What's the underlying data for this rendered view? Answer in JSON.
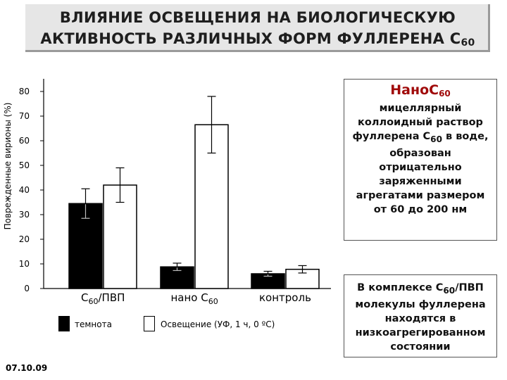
{
  "header": {
    "title_line1": "ВЛИЯНИЕ ОСВЕЩЕНИЯ НА БИОЛОГИЧЕСКУЮ",
    "title_line2": "АКТИВНОСТЬ РАЗЛИЧНЫХ ФОРМ ФУЛЛЕРЕНА С",
    "title_sub": "60"
  },
  "info_box1": {
    "title": "Нано",
    "title_c": "С",
    "title_sub": "60",
    "text_a": "мицеллярный коллоидный раствор фуллерена С",
    "text_sub": "60",
    "text_b": " в воде, образован отрицательно заряженными агрегатами размером от 60 до 200 нм"
  },
  "info_box2": {
    "text_a": "В комплексе С",
    "text_sub": "60",
    "text_b": "/ПВП молекулы фуллерена находятся в низкоагрегированном состоянии"
  },
  "footer": {
    "date": "07.10.09"
  },
  "chart_data": {
    "type": "bar",
    "ylabel": "Поврежденные вирионы (%)",
    "ylim": [
      0,
      80
    ],
    "yticks": [
      0,
      10,
      20,
      30,
      40,
      50,
      60,
      70,
      80
    ],
    "categories": [
      {
        "pre": "С",
        "sub": "60",
        "post": "/ПВП"
      },
      {
        "pre": "нано С",
        "sub": "60",
        "post": ""
      },
      {
        "pre": "контроль",
        "sub": "",
        "post": ""
      }
    ],
    "series": [
      {
        "name": "темнота",
        "fill": "#000000",
        "values": [
          34.5,
          8.8,
          6.0
        ],
        "err": [
          6.0,
          1.5,
          1.0
        ]
      },
      {
        "name": "Освещение (УФ, 1 ч, 0 ºС)",
        "fill": "#ffffff",
        "values": [
          42.0,
          66.5,
          7.8
        ],
        "err": [
          7.0,
          11.5,
          1.5
        ]
      }
    ]
  }
}
